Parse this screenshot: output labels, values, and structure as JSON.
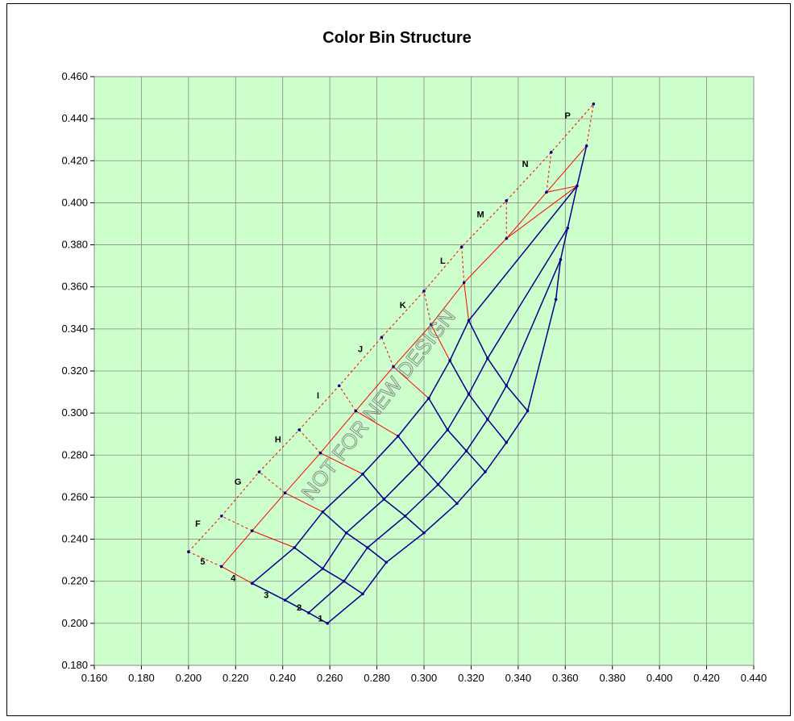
{
  "chart_data": {
    "type": "line",
    "title": "Color Bin Structure",
    "xlim": [
      0.16,
      0.44
    ],
    "ylim": [
      0.18,
      0.46
    ],
    "x_ticks": [
      "0.160",
      "0.180",
      "0.200",
      "0.220",
      "0.240",
      "0.260",
      "0.280",
      "0.300",
      "0.320",
      "0.340",
      "0.360",
      "0.380",
      "0.400",
      "0.420",
      "0.440"
    ],
    "y_ticks": [
      "0.180",
      "0.200",
      "0.220",
      "0.240",
      "0.260",
      "0.280",
      "0.300",
      "0.320",
      "0.340",
      "0.360",
      "0.380",
      "0.400",
      "0.420",
      "0.440",
      "0.460"
    ],
    "grid": true,
    "plot_background": "#ccffcc",
    "watermark": "NOT FOR NEW DESIGN",
    "colors": {
      "blue_grid": "#00008b",
      "red_grid": "#ff0000"
    },
    "boundaries": {
      "b0": [
        [
          0.259,
          0.2
        ],
        [
          0.274,
          0.214
        ],
        [
          0.284,
          0.229
        ],
        [
          0.3,
          0.243
        ],
        [
          0.314,
          0.257
        ],
        [
          0.326,
          0.272
        ],
        [
          0.335,
          0.286
        ],
        [
          0.344,
          0.301
        ],
        [
          0.356,
          0.354
        ]
      ],
      "b1": [
        [
          0.251,
          0.205
        ],
        [
          0.266,
          0.22
        ],
        [
          0.276,
          0.236
        ],
        [
          0.292,
          0.251
        ],
        [
          0.306,
          0.266
        ],
        [
          0.318,
          0.282
        ],
        [
          0.327,
          0.297
        ],
        [
          0.335,
          0.313
        ],
        [
          0.358,
          0.373
        ]
      ],
      "b2": [
        [
          0.241,
          0.211
        ],
        [
          0.257,
          0.226
        ],
        [
          0.267,
          0.243
        ],
        [
          0.283,
          0.259
        ],
        [
          0.298,
          0.276
        ],
        [
          0.31,
          0.292
        ],
        [
          0.319,
          0.309
        ],
        [
          0.327,
          0.326
        ],
        [
          0.361,
          0.388
        ]
      ],
      "b3": [
        [
          0.227,
          0.219
        ],
        [
          0.245,
          0.236
        ],
        [
          0.257,
          0.253
        ],
        [
          0.274,
          0.271
        ],
        [
          0.289,
          0.289
        ],
        [
          0.302,
          0.307
        ],
        [
          0.311,
          0.325
        ],
        [
          0.319,
          0.344
        ],
        [
          0.365,
          0.408
        ]
      ],
      "b4": [
        [
          0.214,
          0.227
        ],
        [
          0.227,
          0.244
        ],
        [
          0.241,
          0.262
        ],
        [
          0.256,
          0.281
        ],
        [
          0.271,
          0.301
        ],
        [
          0.287,
          0.322
        ],
        [
          0.303,
          0.342
        ],
        [
          0.317,
          0.362
        ],
        [
          0.335,
          0.383
        ],
        [
          0.352,
          0.405
        ],
        [
          0.369,
          0.427
        ]
      ],
      "b5": [
        [
          0.2,
          0.234
        ],
        [
          0.214,
          0.251
        ],
        [
          0.23,
          0.272
        ],
        [
          0.247,
          0.292
        ],
        [
          0.264,
          0.313
        ],
        [
          0.282,
          0.336
        ],
        [
          0.3,
          0.358
        ],
        [
          0.316,
          0.379
        ],
        [
          0.335,
          0.401
        ],
        [
          0.354,
          0.424
        ],
        [
          0.372,
          0.447
        ]
      ]
    },
    "bin_labels": [
      {
        "text": "F",
        "x": 0.204,
        "y": 0.246
      },
      {
        "text": "G",
        "x": 0.221,
        "y": 0.266
      },
      {
        "text": "H",
        "x": 0.238,
        "y": 0.286
      },
      {
        "text": "I",
        "x": 0.255,
        "y": 0.307
      },
      {
        "text": "J",
        "x": 0.273,
        "y": 0.329
      },
      {
        "text": "K",
        "x": 0.291,
        "y": 0.35
      },
      {
        "text": "L",
        "x": 0.308,
        "y": 0.371
      },
      {
        "text": "M",
        "x": 0.324,
        "y": 0.393
      },
      {
        "text": "N",
        "x": 0.343,
        "y": 0.417
      },
      {
        "text": "P",
        "x": 0.361,
        "y": 0.44
      },
      {
        "text": "5",
        "x": 0.206,
        "y": 0.228
      },
      {
        "text": "4",
        "x": 0.219,
        "y": 0.22
      },
      {
        "text": "3",
        "x": 0.233,
        "y": 0.212
      },
      {
        "text": "2",
        "x": 0.247,
        "y": 0.206
      },
      {
        "text": "1",
        "x": 0.256,
        "y": 0.201
      }
    ]
  }
}
